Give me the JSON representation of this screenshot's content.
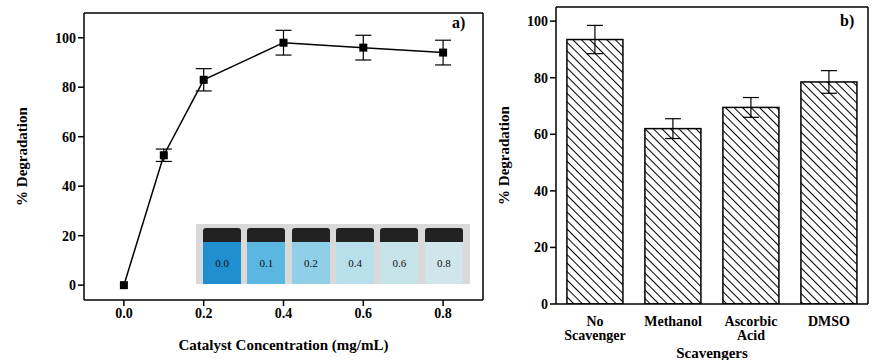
{
  "chart_data": [
    {
      "type": "line",
      "panel": "a)",
      "x_label": "Catalyst Concentration (mg/mL)",
      "y_label": "% Degradation",
      "x": [
        0,
        0.1,
        0.2,
        0.4,
        0.6,
        0.8
      ],
      "values": [
        0,
        52.5,
        83,
        98,
        96,
        94
      ],
      "errors": [
        0,
        2.5,
        4.5,
        5,
        5,
        5
      ],
      "color": "#000000",
      "marker": "square",
      "xlim": [
        -0.1,
        0.9
      ],
      "xticks": [
        {
          "value": 0,
          "label": "0.0"
        },
        0.2,
        0.4,
        0.6,
        0.8
      ],
      "ylim": [
        -6,
        110
      ],
      "yticks": [
        0,
        20,
        40,
        60,
        80,
        100
      ],
      "inset_labels": [
        "0.0",
        "0.1",
        "0.2",
        "0.4",
        "0.6",
        "0.8"
      ]
    },
    {
      "type": "bar",
      "panel": "b)",
      "x_label": "Scavengers",
      "y_label": "% Degradation",
      "categories": [
        "No Scavenger",
        "Methanol",
        "Ascorbic Acid",
        "DMSO"
      ],
      "values": [
        93.5,
        62,
        69.5,
        78.5
      ],
      "errors": [
        5,
        3.5,
        3.5,
        4
      ],
      "color": "#000000",
      "ylim": [
        0,
        105
      ],
      "yticks": [
        0,
        20,
        40,
        60,
        80,
        100
      ]
    }
  ]
}
